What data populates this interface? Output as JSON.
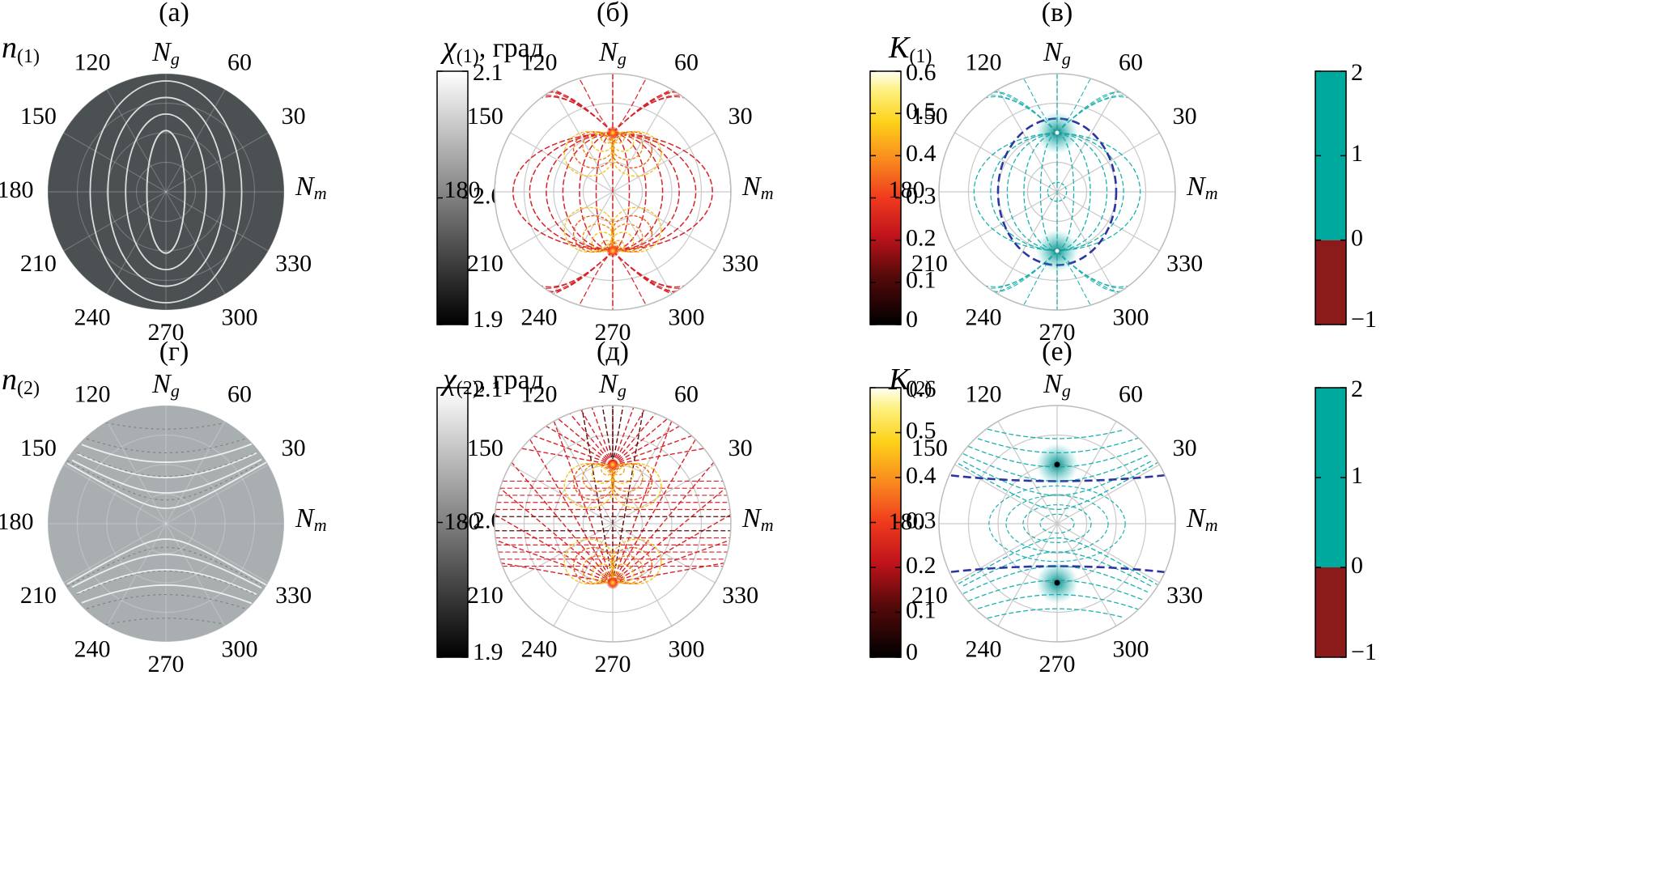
{
  "angle_labels": {
    "a120": "120",
    "a60": "60",
    "a150": "150",
    "a30": "30",
    "a180": "180",
    "a210": "210",
    "a330": "330",
    "a240": "240",
    "a270": "270",
    "a300": "300"
  },
  "axes": {
    "Ng_main": "N",
    "Ng_sub": "g",
    "Nm_main": "N",
    "Nm_sub": "m"
  },
  "chart_data": [
    {
      "id": "a",
      "type": "heatmap",
      "projection": "polar",
      "label": "(а)",
      "quantity": "n",
      "subscript": "(1)",
      "unit": "",
      "colormap": "gray",
      "colorbar_ticks": [
        "2.1",
        "2.0",
        "1.9"
      ],
      "clim": [
        1.9,
        2.1
      ],
      "background": "#4b5052",
      "contour_shape": "nested ellipses elongated along Ng",
      "contour_color": "#dcdcdc"
    },
    {
      "id": "b",
      "type": "heatmap",
      "projection": "polar",
      "label": "(б)",
      "quantity": "χ",
      "subscript": "(1)",
      "unit": ", град",
      "colormap": "hot",
      "colorbar_ticks": [
        "0.6",
        "0.5",
        "0.4",
        "0.3",
        "0.2",
        "0.1",
        "0"
      ],
      "clim": [
        0,
        0.6
      ],
      "background": "#ffffff",
      "contour_shape": "field lines through poles on Ng axis with lobes near poles",
      "contour_color": "#d8232a"
    },
    {
      "id": "c",
      "type": "heatmap",
      "projection": "polar",
      "label": "(в)",
      "quantity": "K",
      "subscript": "(1)",
      "unit": "",
      "colormap": "discrete",
      "colorbar_ticks": [
        "2",
        "1",
        "0",
        "−1"
      ],
      "clim": [
        -1,
        2
      ],
      "colorbar_colors": [
        "#00a99d",
        "#8b1a1a"
      ],
      "background": "#ffffff",
      "contour_shape": "teal field lines through poles with dashed blue ellipse",
      "contour_color": "#19b2b0",
      "dashed_color": "#2c35a0"
    },
    {
      "id": "d",
      "type": "heatmap",
      "projection": "polar",
      "label": "(г)",
      "quantity": "n",
      "subscript": "(2)",
      "unit": "",
      "colormap": "gray",
      "colorbar_ticks": [
        "2.1",
        "2.0",
        "1.9"
      ],
      "clim": [
        1.9,
        2.1
      ],
      "background": "#a9afb1",
      "contour_shape": "hyperbola-like curves opening along Ng",
      "contour_color": "#eeeeee"
    },
    {
      "id": "e",
      "type": "heatmap",
      "projection": "polar",
      "label": "(д)",
      "quantity": "χ",
      "subscript": "(2)",
      "unit": ", град",
      "colormap": "hot",
      "colorbar_ticks": [
        "0.6",
        "0.5",
        "0.4",
        "0.3",
        "0.2",
        "0.1",
        "0"
      ],
      "clim": [
        0,
        0.6
      ],
      "background": "#ffffff",
      "contour_shape": "radial lines from poles with lobes near poles",
      "contour_color": "#d8232a"
    },
    {
      "id": "f",
      "type": "heatmap",
      "projection": "polar",
      "label": "(е)",
      "quantity": "K",
      "subscript": "(2)",
      "unit": "",
      "colormap": "discrete",
      "colorbar_ticks": [
        "2",
        "1",
        "0",
        "−1"
      ],
      "clim": [
        -1,
        2
      ],
      "colorbar_colors": [
        "#00a99d",
        "#8b1a1a"
      ],
      "background": "#ffffff",
      "contour_shape": "teal curves around poles with dashed blue hyperbola",
      "contour_color": "#19b2b0",
      "dashed_color": "#2c35a0"
    }
  ]
}
